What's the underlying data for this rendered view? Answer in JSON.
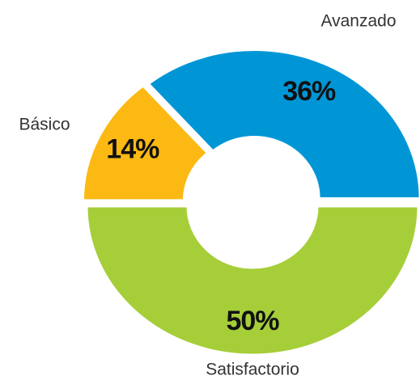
{
  "chart_data": {
    "type": "pie",
    "donut": true,
    "categories": [
      "Satisfactorio",
      "Básico",
      "Avanzado"
    ],
    "values": [
      50,
      14,
      36
    ],
    "value_labels": [
      "50%",
      "14%",
      "36%"
    ],
    "colors": [
      "#a6ce39",
      "#fdb913",
      "#0096d6"
    ]
  }
}
